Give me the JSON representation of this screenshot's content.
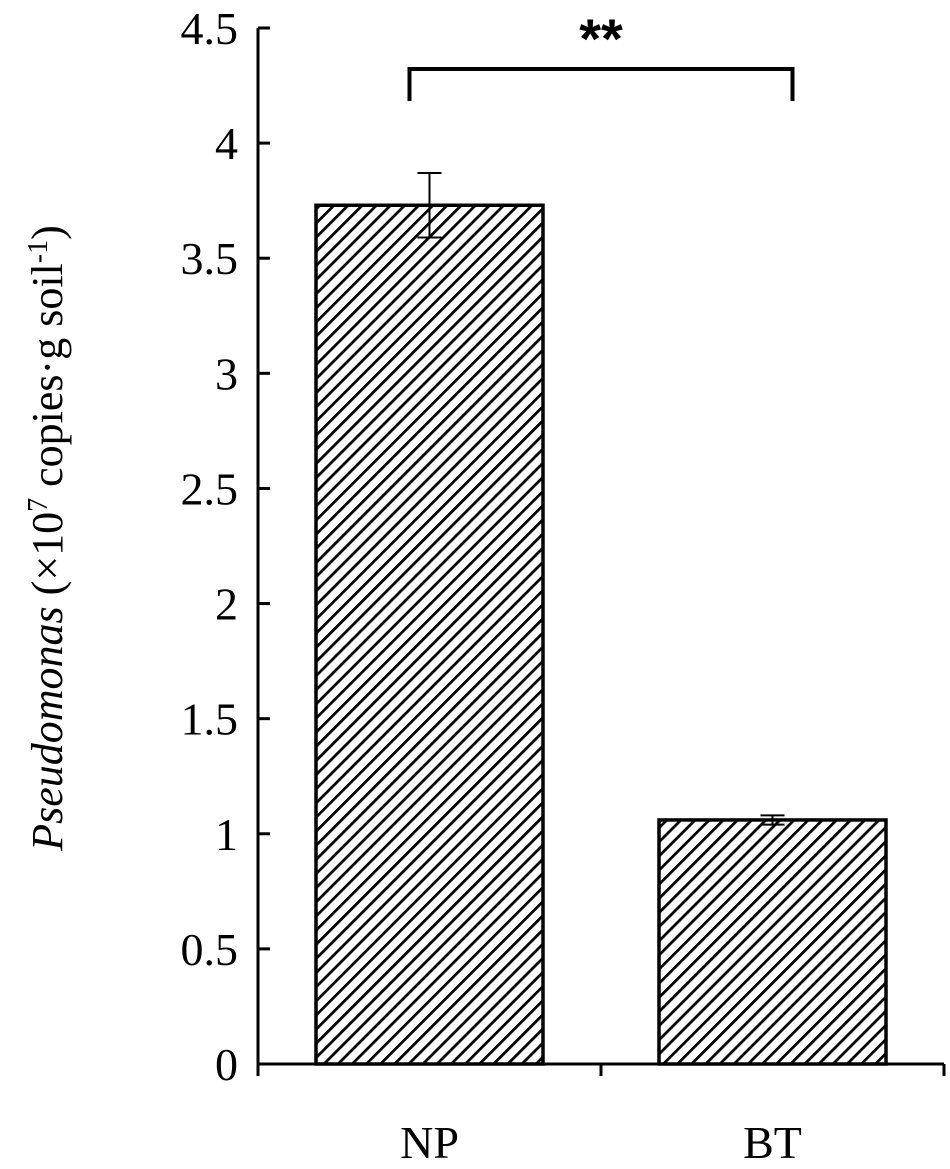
{
  "chart_data": {
    "type": "bar",
    "categories": [
      "NP",
      "BT"
    ],
    "series": [
      {
        "values": [
          3.73,
          1.06
        ],
        "error": [
          0.14,
          0.02
        ]
      }
    ],
    "ylabel": {
      "italic": "Pseudomonas",
      "prefix": " (×10",
      "sup1": "7",
      "mid": " copies·g soil",
      "sup2": "-1",
      "suffix": ")"
    },
    "ylim": [
      0,
      4.5
    ],
    "yticks": [
      "0",
      "0.5",
      "1",
      "1.5",
      "2",
      "2.5",
      "3",
      "3.5",
      "4",
      "4.5"
    ],
    "annotations": [
      {
        "text": "**",
        "between": [
          "NP",
          "BT"
        ]
      }
    ],
    "bar_fill": "diagonal-hatch",
    "colors": {
      "bar_stroke": "#000000",
      "hatch": "#000000",
      "background": "#ffffff"
    },
    "grid": false,
    "legend": "none"
  }
}
